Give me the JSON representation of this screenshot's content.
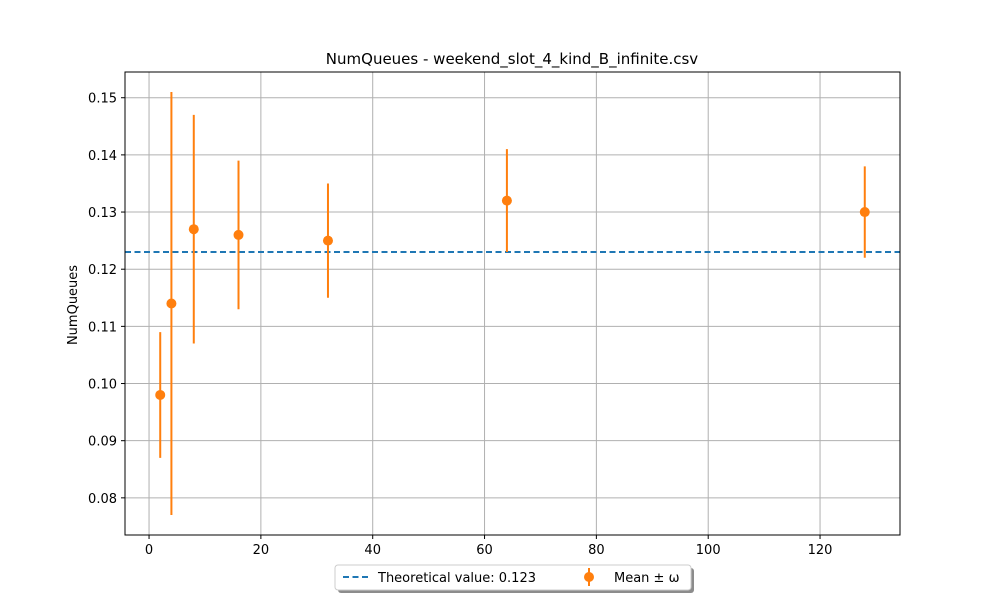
{
  "chart_data": {
    "type": "scatter",
    "title": "NumQueues - weekend_slot_4_kind_B_infinite.csv",
    "xlabel": "",
    "ylabel": "NumQueues",
    "xlim": [
      -4.3,
      134.3
    ],
    "ylim": [
      0.0735,
      0.1545
    ],
    "xticks": [
      0,
      20,
      40,
      60,
      80,
      100,
      120
    ],
    "yticks": [
      0.08,
      0.09,
      0.1,
      0.11,
      0.12,
      0.13,
      0.14,
      0.15
    ],
    "ytick_labels": [
      "0.08",
      "0.09",
      "0.10",
      "0.11",
      "0.12",
      "0.13",
      "0.14",
      "0.15"
    ],
    "grid": true,
    "legend_placement": "bottom-center",
    "series": [
      {
        "name": "Mean ± ω",
        "kind": "errorbar",
        "color": "#ff7f0e",
        "x": [
          2,
          4,
          8,
          16,
          32,
          64,
          128
        ],
        "y": [
          0.098,
          0.114,
          0.127,
          0.126,
          0.125,
          0.132,
          0.13
        ],
        "err": [
          0.011,
          0.037,
          0.02,
          0.013,
          0.01,
          0.009,
          0.008
        ]
      }
    ],
    "reference_line": {
      "name": "Theoretical value: 0.123",
      "value": 0.123,
      "color": "#1f77b4",
      "style": "dashed"
    }
  }
}
